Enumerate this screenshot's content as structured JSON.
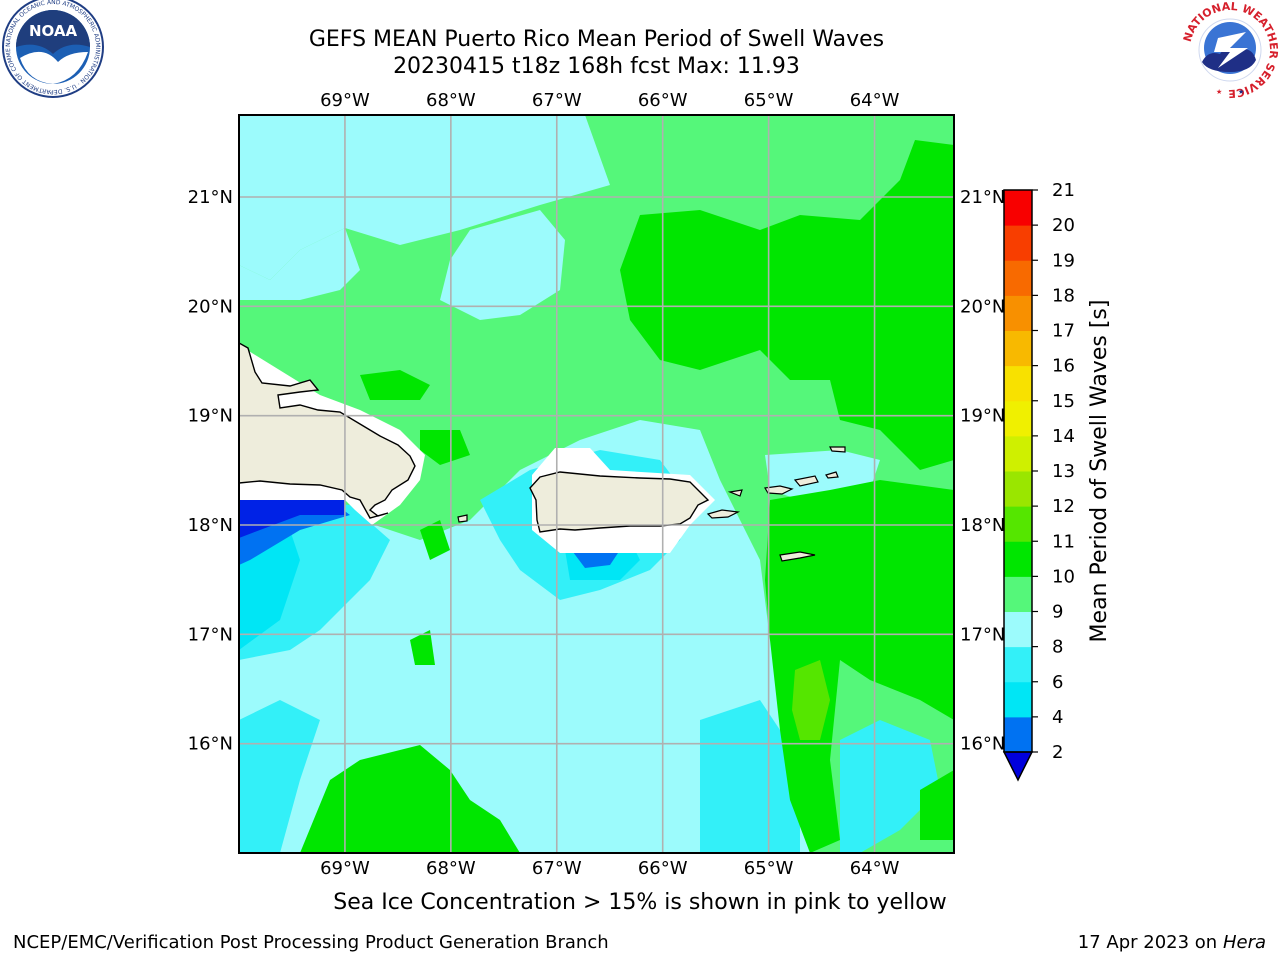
{
  "title": {
    "line1": "GEFS MEAN Puerto Rico Mean Period of Swell Waves",
    "line2": "20230415 t18z 168h fcst   Max: 11.93"
  },
  "logos": {
    "left": {
      "name": "NOAA",
      "ring_text": "NATIONAL OCEANIC AND ATMOSPHERIC ADMINISTRATION · U.S. DEPARTMENT OF COMMERCE"
    },
    "right": {
      "name": "NATIONAL WEATHER SERVICE"
    }
  },
  "map": {
    "region": "Puerto Rico",
    "lon_range": [
      -70.0,
      -63.25
    ],
    "lat_range": [
      15.0,
      21.75
    ],
    "lon_ticks": [
      "69°W",
      "68°W",
      "67°W",
      "66°W",
      "65°W",
      "64°W"
    ],
    "lat_ticks": [
      "21°N",
      "20°N",
      "19°N",
      "18°N",
      "17°N",
      "16°N"
    ],
    "gridlines": true,
    "land_color": "#eeeddc",
    "masked_color": "#ffffff"
  },
  "colorbar": {
    "label": "Mean Period of Swell Waves [s]",
    "ticks": [
      "2",
      "4",
      "6",
      "8",
      "9",
      "10",
      "11",
      "12",
      "13",
      "14",
      "15",
      "16",
      "17",
      "18",
      "19",
      "20",
      "21"
    ],
    "colors": [
      "#0022e6",
      "#0072f2",
      "#00e6f5",
      "#33f0f8",
      "#9cfbfc",
      "#55f77a",
      "#00e600",
      "#55e600",
      "#9ae600",
      "#cff000",
      "#f0f000",
      "#f8e100",
      "#f8b900",
      "#f89000",
      "#f86a00",
      "#f83e00",
      "#f80000"
    ],
    "extend": "min",
    "extend_color": "#0000dc"
  },
  "footer": {
    "note": "Sea Ice Concentration > 15% is shown in pink to yellow",
    "credit_left": "NCEP/EMC/Verification Post Processing Product Generation Branch",
    "credit_right_date": "17 Apr 2023 on",
    "credit_right_host": "Hera"
  }
}
